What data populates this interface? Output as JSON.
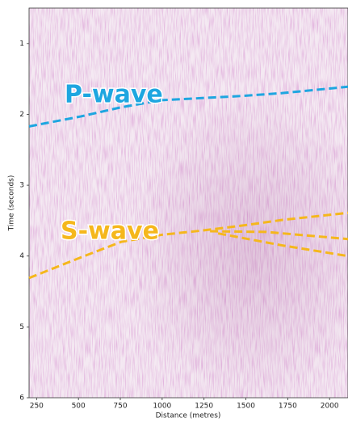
{
  "chart_data": {
    "type": "line",
    "x_label": "Distance (metres)",
    "y_label": "Time (seconds)",
    "annotations": [
      "P-wave",
      "S-wave"
    ],
    "xlim": [
      205,
      2110
    ],
    "ylim": [
      0.5,
      6
    ],
    "y_inverted": true,
    "xticks": [
      250,
      500,
      750,
      1000,
      1250,
      1500,
      1750,
      2000
    ],
    "yticks": [
      1,
      2,
      3,
      4,
      5,
      6
    ],
    "series": [
      {
        "color": "#1ea6e0",
        "x": [
          205,
          513,
          755,
          997,
          1478,
          1718,
          2110
        ],
        "values": [
          2.17,
          2.03,
          1.9,
          1.8,
          1.74,
          1.7,
          1.61
        ]
      },
      {
        "color": "#f5b71c",
        "x": [
          205,
          513,
          755,
          997,
          1238,
          1478,
          1718,
          2110
        ],
        "values": [
          4.31,
          4.02,
          3.8,
          3.7,
          3.64,
          3.57,
          3.49,
          3.39
        ]
      },
      {
        "color": "#f5b71c",
        "x": [
          1286,
          1622,
          2110
        ],
        "values": [
          3.65,
          3.66,
          3.76
        ]
      },
      {
        "color": "#f5b71c",
        "x": [
          1334,
          1718,
          2110
        ],
        "values": [
          3.68,
          3.85,
          4.0
        ]
      }
    ]
  }
}
